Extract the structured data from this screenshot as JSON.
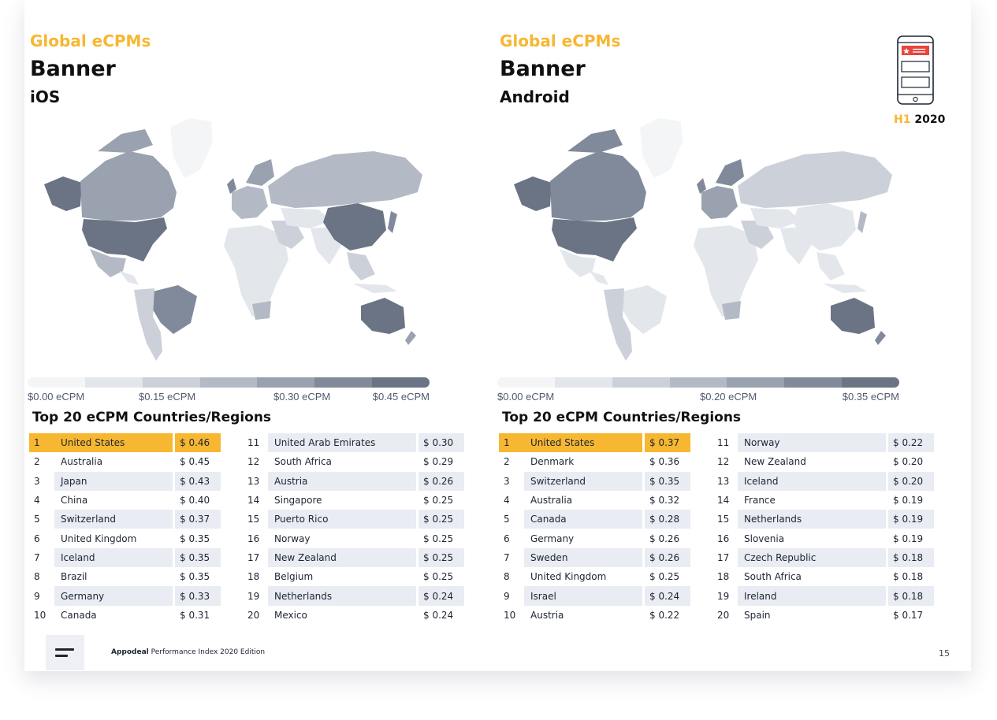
{
  "page": {
    "number": "15"
  },
  "badge": {
    "half": "H1",
    "year": "2020"
  },
  "footer": {
    "brand": "Appodeal",
    "edition": "Performance Index 2020 Edition"
  },
  "panels": [
    {
      "kicker": "Global eCPMs",
      "title": "Banner",
      "platform": "iOS",
      "scale_labels": [
        "$0.00 eCPM",
        "$0.15 eCPM",
        "$0.30 eCPM",
        "$0.45 eCPM"
      ],
      "table_title": "Top 20 eCPM Countries/Regions",
      "ranking": [
        {
          "rank": "1",
          "country": "United States",
          "value": "$ 0.46"
        },
        {
          "rank": "2",
          "country": "Australia",
          "value": "$ 0.45"
        },
        {
          "rank": "3",
          "country": "Japan",
          "value": "$ 0.43"
        },
        {
          "rank": "4",
          "country": "China",
          "value": "$ 0.40"
        },
        {
          "rank": "5",
          "country": "Switzerland",
          "value": "$ 0.37"
        },
        {
          "rank": "6",
          "country": "United Kingdom",
          "value": "$ 0.35"
        },
        {
          "rank": "7",
          "country": "Iceland",
          "value": "$ 0.35"
        },
        {
          "rank": "8",
          "country": "Brazil",
          "value": "$ 0.35"
        },
        {
          "rank": "9",
          "country": "Germany",
          "value": "$ 0.33"
        },
        {
          "rank": "10",
          "country": "Canada",
          "value": "$ 0.31"
        },
        {
          "rank": "11",
          "country": "United Arab Emirates",
          "value": "$ 0.30"
        },
        {
          "rank": "12",
          "country": "South Africa",
          "value": "$ 0.29"
        },
        {
          "rank": "13",
          "country": "Austria",
          "value": "$ 0.26"
        },
        {
          "rank": "14",
          "country": "Singapore",
          "value": "$ 0.25"
        },
        {
          "rank": "15",
          "country": "Puerto Rico",
          "value": "$ 0.25"
        },
        {
          "rank": "16",
          "country": "Norway",
          "value": "$ 0.25"
        },
        {
          "rank": "17",
          "country": "New Zealand",
          "value": "$ 0.25"
        },
        {
          "rank": "18",
          "country": "Belgium",
          "value": "$ 0.25"
        },
        {
          "rank": "19",
          "country": "Netherlands",
          "value": "$ 0.24"
        },
        {
          "rank": "20",
          "country": "Mexico",
          "value": "$ 0.24"
        }
      ]
    },
    {
      "kicker": "Global eCPMs",
      "title": "Banner",
      "platform": "Android",
      "scale_labels": [
        "$0.00 eCPM",
        "$0.20 eCPM",
        "$0.35 eCPM"
      ],
      "table_title": "Top 20 eCPM Countries/Regions",
      "ranking": [
        {
          "rank": "1",
          "country": "United States",
          "value": "$ 0.37"
        },
        {
          "rank": "2",
          "country": "Denmark",
          "value": "$ 0.36"
        },
        {
          "rank": "3",
          "country": "Switzerland",
          "value": "$ 0.35"
        },
        {
          "rank": "4",
          "country": "Australia",
          "value": "$ 0.32"
        },
        {
          "rank": "5",
          "country": "Canada",
          "value": "$ 0.28"
        },
        {
          "rank": "6",
          "country": "Germany",
          "value": "$ 0.26"
        },
        {
          "rank": "7",
          "country": "Sweden",
          "value": "$ 0.26"
        },
        {
          "rank": "8",
          "country": "United Kingdom",
          "value": "$ 0.25"
        },
        {
          "rank": "9",
          "country": "Israel",
          "value": "$ 0.24"
        },
        {
          "rank": "10",
          "country": "Austria",
          "value": "$ 0.22"
        },
        {
          "rank": "11",
          "country": "Norway",
          "value": "$ 0.22"
        },
        {
          "rank": "12",
          "country": "New Zealand",
          "value": "$ 0.20"
        },
        {
          "rank": "13",
          "country": "Iceland",
          "value": "$ 0.20"
        },
        {
          "rank": "14",
          "country": "France",
          "value": "$ 0.19"
        },
        {
          "rank": "15",
          "country": "Netherlands",
          "value": "$ 0.19"
        },
        {
          "rank": "16",
          "country": "Slovenia",
          "value": "$ 0.19"
        },
        {
          "rank": "17",
          "country": "Czech Republic",
          "value": "$ 0.18"
        },
        {
          "rank": "18",
          "country": "South Africa",
          "value": "$ 0.18"
        },
        {
          "rank": "19",
          "country": "Ireland",
          "value": "$ 0.18"
        },
        {
          "rank": "20",
          "country": "Spain",
          "value": "$ 0.17"
        }
      ]
    }
  ],
  "colors": {
    "accent": "#f7b731",
    "scale": [
      "#f4f5f7",
      "#e3e6eb",
      "#ccd1d9",
      "#b4bac5",
      "#9aa2b0",
      "#818a9a",
      "#6b7485"
    ]
  }
}
